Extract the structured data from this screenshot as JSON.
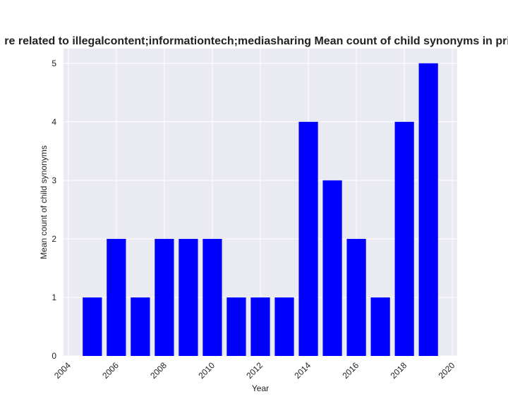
{
  "chart_data": {
    "type": "bar",
    "title": "re related to illegalcontent;informationtech;mediasharing Mean count of child synonyms in priv",
    "xlabel": "Year",
    "ylabel": "Mean count of child synonyms",
    "x": [
      2005,
      2006,
      2007,
      2008,
      2009,
      2010,
      2011,
      2012,
      2013,
      2014,
      2015,
      2016,
      2017,
      2018,
      2019
    ],
    "values": [
      1,
      2,
      1,
      2,
      2,
      2,
      1,
      1,
      1,
      4,
      3,
      2,
      1,
      4,
      5
    ],
    "xlim": [
      2003.8,
      2020.2
    ],
    "ylim": [
      0,
      5.25
    ],
    "xticks": [
      2004,
      2006,
      2008,
      2010,
      2012,
      2014,
      2016,
      2018,
      2020
    ],
    "yticks": [
      0,
      1,
      2,
      3,
      4,
      5
    ],
    "bar_color": "#0000ff",
    "background_color": "#eaeaf2",
    "grid": true
  }
}
